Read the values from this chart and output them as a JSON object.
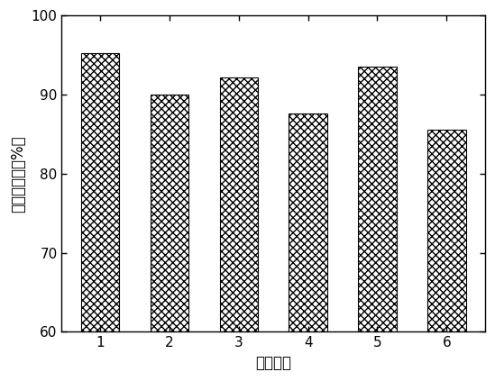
{
  "categories": [
    1,
    2,
    3,
    4,
    5,
    6
  ],
  "values": [
    95.2,
    90.0,
    92.2,
    87.6,
    93.5,
    85.5
  ],
  "xlabel": "重复次数",
  "ylabel": "重复利用率（%）",
  "ylim": [
    60,
    100
  ],
  "yticks": [
    60,
    70,
    80,
    90,
    100
  ],
  "bar_color": "#ffffff",
  "bar_edgecolor": "#000000",
  "hatch": "xxxx",
  "bar_width": 0.55,
  "figsize": [
    5.49,
    4.23
  ],
  "dpi": 100
}
